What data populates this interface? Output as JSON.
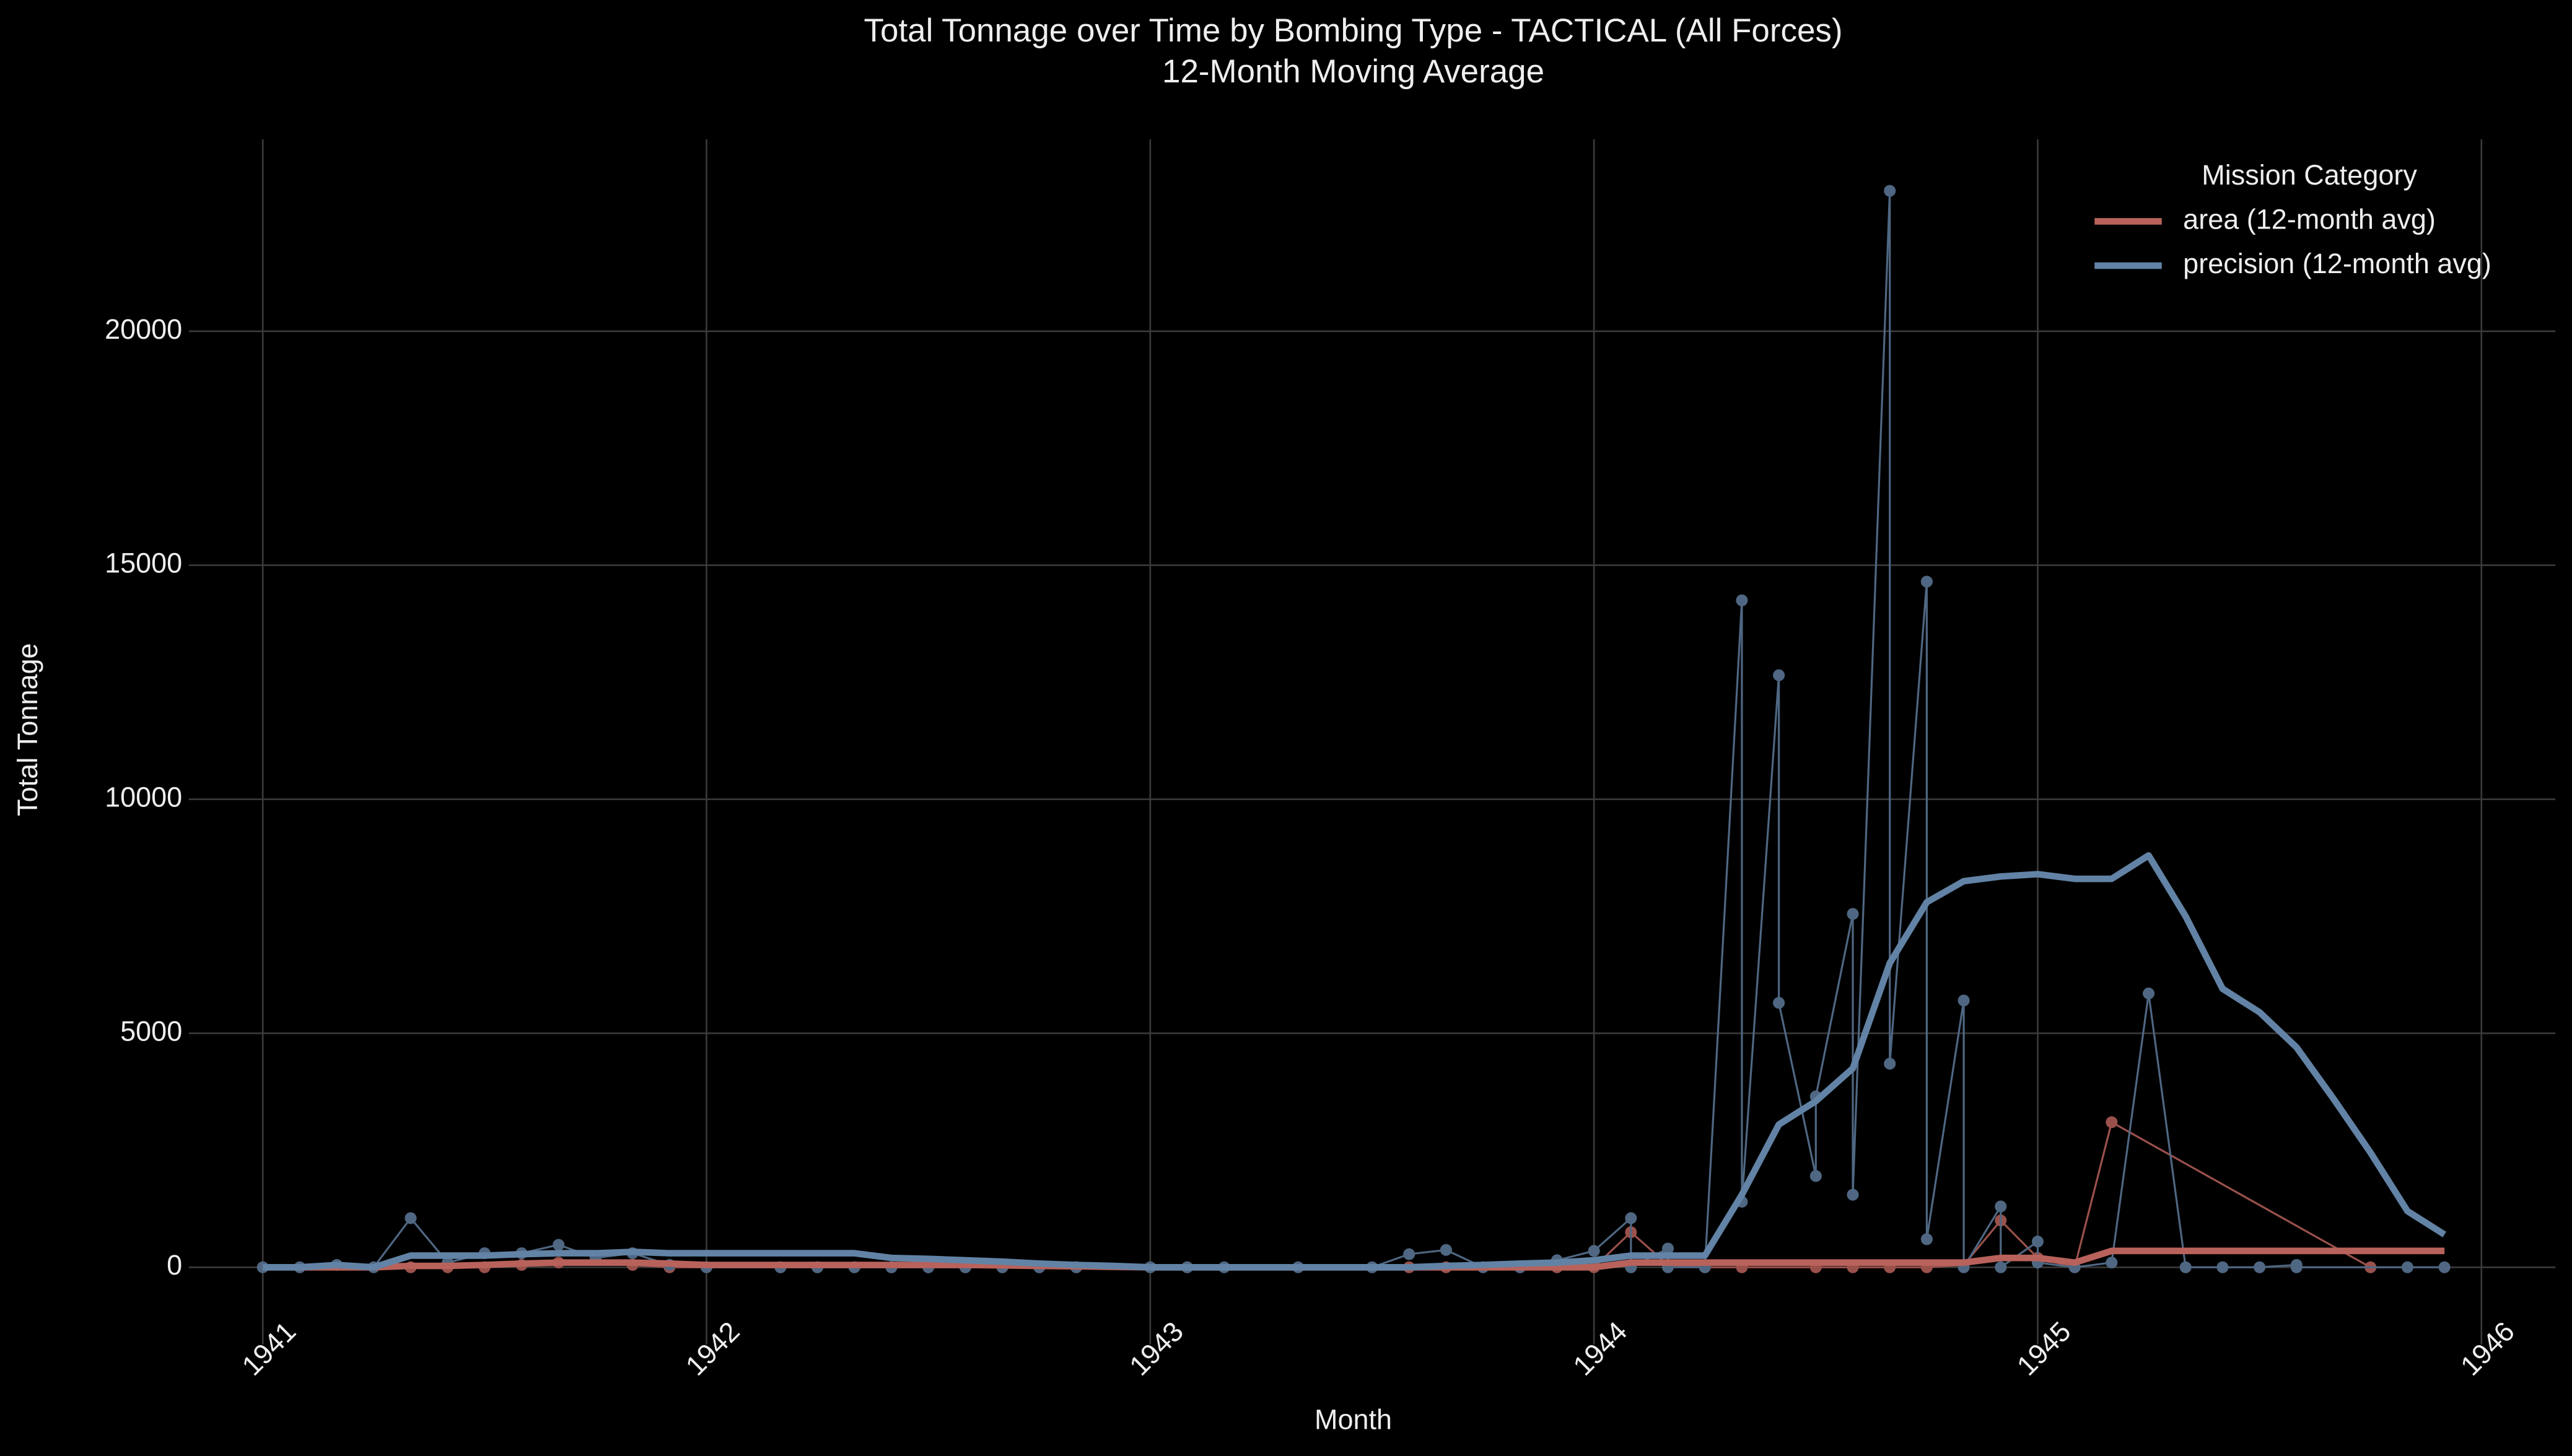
{
  "chart_data": {
    "type": "line",
    "title": "Total Tonnage over Time by Bombing Type - TACTICAL (All Forces)",
    "subtitle": "12-Month Moving Average",
    "x_label": "Month",
    "y_label": "Total Tonnage",
    "legend_title": "Mission Category",
    "legend_position": "upper right",
    "grid": true,
    "xlim": [
      "1940-11",
      "1946-03"
    ],
    "xticks": [
      "1941",
      "1942",
      "1943",
      "1944",
      "1945",
      "1946"
    ],
    "ylim": [
      -1650,
      24100
    ],
    "yticks": [
      0,
      5000,
      10000,
      15000,
      20000
    ],
    "x": [
      "1941-01",
      "1941-02",
      "1941-03",
      "1941-04",
      "1941-05",
      "1941-06",
      "1941-07",
      "1941-08",
      "1941-09",
      "1941-10",
      "1941-11",
      "1941-12",
      "1942-01",
      "1942-02",
      "1942-03",
      "1942-04",
      "1942-05",
      "1942-06",
      "1942-07",
      "1942-08",
      "1942-09",
      "1942-10",
      "1942-11",
      "1942-12",
      "1943-01",
      "1943-02",
      "1943-03",
      "1943-04",
      "1943-05",
      "1943-06",
      "1943-07",
      "1943-08",
      "1943-09",
      "1943-10",
      "1943-11",
      "1943-12",
      "1944-01",
      "1944-02",
      "1944-03",
      "1944-04",
      "1944-05",
      "1944-06",
      "1944-07",
      "1944-08",
      "1944-09",
      "1944-10",
      "1944-11",
      "1944-12",
      "1945-01",
      "1945-02",
      "1945-03",
      "1945-04",
      "1945-05",
      "1945-06",
      "1945-07",
      "1945-08",
      "1945-09",
      "1945-10",
      "1945-11",
      "1945-12"
    ],
    "series": [
      {
        "color": "#9a514c",
        "style": "raw",
        "x": [
          "1941-05",
          "1941-06",
          "1941-07",
          "1941-08",
          "1941-09",
          "1941-11",
          "1941-12",
          "1942-01",
          "1942-03",
          "1942-04",
          "1942-05",
          "1942-06",
          "1942-07",
          "1942-08",
          "1942-09",
          "1942-10",
          "1942-11",
          "1943-01",
          "1943-02",
          "1943-08",
          "1943-09",
          "1943-11",
          "1943-12",
          "1944-01",
          "1944-02",
          "1944-03",
          "1944-04",
          "1944-05",
          "1944-07",
          "1944-08",
          "1944-09",
          "1944-10",
          "1944-11",
          "1944-12",
          "1945-01",
          "1945-02",
          "1945-03",
          "1945-10"
        ],
        "values": [
          0,
          0,
          0,
          50,
          100,
          50,
          0,
          0,
          0,
          0,
          0,
          0,
          0,
          0,
          0,
          0,
          0,
          0,
          0,
          0,
          0,
          0,
          0,
          0,
          750,
          50,
          0,
          0,
          0,
          0,
          0,
          0,
          50,
          1000,
          200,
          0,
          3100,
          0
        ]
      },
      {
        "color": "#4f6782",
        "style": "raw",
        "x": [
          "1941-01",
          "1941-02",
          "1941-03",
          "1941-04",
          "1941-05",
          "1941-06",
          "1941-07",
          "1941-08",
          "1941-09",
          "1941-10",
          "1941-11",
          "1941-12",
          "1942-01",
          "1942-03",
          "1942-04",
          "1942-05",
          "1942-06",
          "1942-07",
          "1942-08",
          "1942-09",
          "1942-10",
          "1942-11",
          "1943-01",
          "1943-02",
          "1943-03",
          "1943-05",
          "1943-07",
          "1943-08",
          "1943-09",
          "1943-10",
          "1943-11",
          "1943-12",
          "1944-01",
          "1944-02",
          "1944-02",
          "1944-03",
          "1944-03",
          "1944-04",
          "1944-05",
          "1944-05",
          "1944-06",
          "1944-06",
          "1944-07",
          "1944-07",
          "1944-08",
          "1944-08",
          "1944-09",
          "1944-09",
          "1944-10",
          "1944-10",
          "1944-11",
          "1944-11",
          "1944-12",
          "1944-12",
          "1945-01",
          "1945-01",
          "1945-02",
          "1945-03",
          "1945-04",
          "1945-05",
          "1945-06",
          "1945-07",
          "1945-08",
          "1945-08",
          "1945-11",
          "1945-12"
        ],
        "values": [
          0,
          0,
          50,
          0,
          1050,
          100,
          300,
          300,
          480,
          200,
          300,
          50,
          0,
          0,
          0,
          0,
          0,
          0,
          0,
          0,
          0,
          0,
          0,
          0,
          0,
          0,
          0,
          280,
          370,
          0,
          0,
          150,
          350,
          1050,
          0,
          400,
          0,
          0,
          14250,
          1400,
          12650,
          5650,
          1950,
          3650,
          7550,
          1550,
          23000,
          4350,
          14650,
          600,
          5700,
          0,
          1300,
          0,
          550,
          100,
          0,
          100,
          5850,
          0,
          0,
          0,
          50,
          0,
          0,
          0
        ]
      },
      {
        "name": "area (12-month avg)",
        "color": "#b8625b",
        "style": "avg",
        "values": [
          0,
          0,
          0,
          0,
          30,
          30,
          50,
          80,
          100,
          100,
          100,
          80,
          50,
          50,
          50,
          50,
          50,
          50,
          50,
          50,
          40,
          30,
          20,
          10,
          0,
          0,
          0,
          0,
          0,
          0,
          0,
          0,
          0,
          0,
          0,
          0,
          0,
          100,
          100,
          100,
          100,
          100,
          100,
          100,
          100,
          100,
          100,
          200,
          200,
          100,
          350,
          350,
          350,
          350,
          350,
          350,
          350,
          350,
          350,
          350
        ]
      },
      {
        "name": "precision (12-month avg)",
        "color": "#6283a5",
        "style": "avg",
        "values": [
          0,
          0,
          50,
          0,
          250,
          250,
          250,
          280,
          300,
          300,
          330,
          300,
          300,
          300,
          300,
          300,
          300,
          200,
          180,
          150,
          120,
          80,
          50,
          30,
          0,
          0,
          0,
          0,
          0,
          0,
          0,
          0,
          30,
          50,
          80,
          100,
          150,
          250,
          250,
          250,
          1550,
          3050,
          3550,
          4250,
          6500,
          7800,
          8250,
          8350,
          8400,
          8300,
          8300,
          8800,
          7500,
          5950,
          5450,
          4700,
          3600,
          2450,
          1200,
          700
        ]
      }
    ]
  }
}
